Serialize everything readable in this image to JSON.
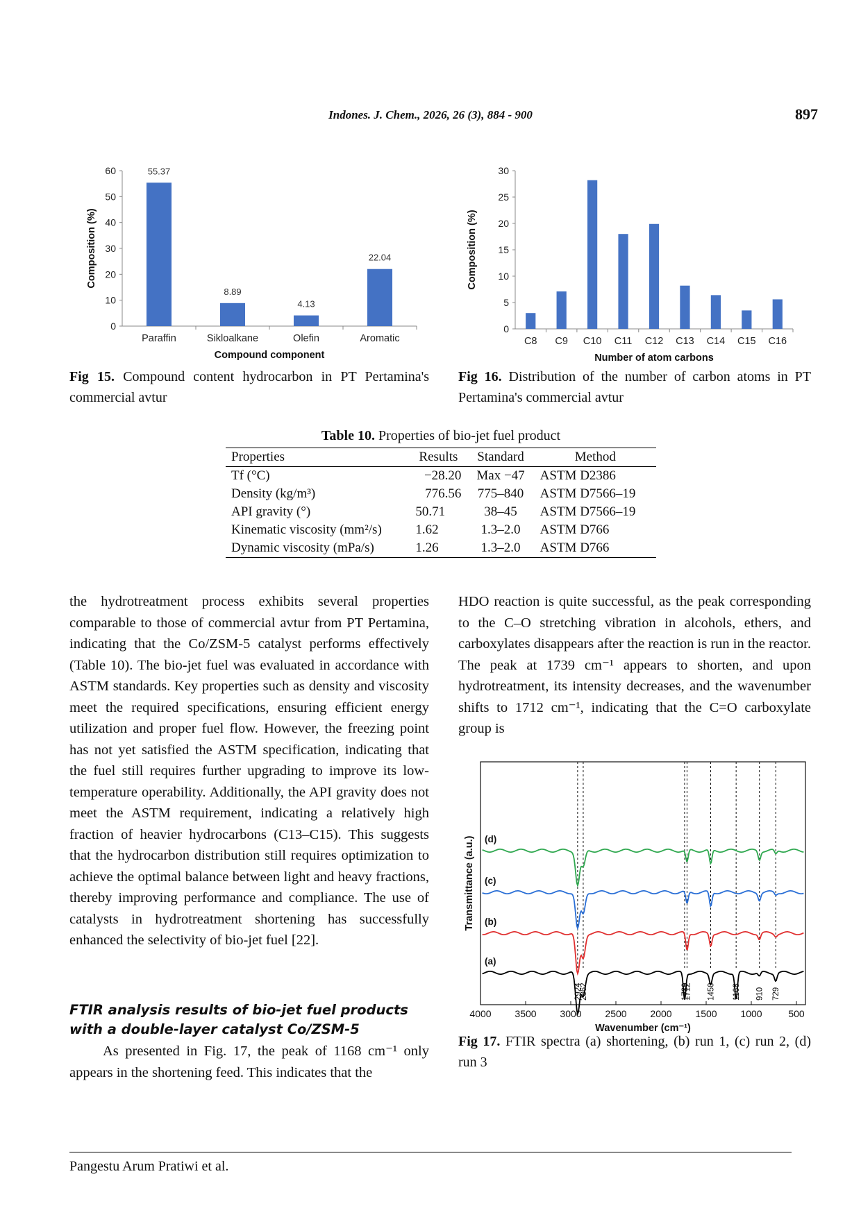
{
  "header": {
    "journal": "Indones. J. Chem., 2026, 26 (3), 884 - 900",
    "page_number": "897"
  },
  "fig15": {
    "caption_label": "Fig 15.",
    "caption_text": "Compound content hydrocarbon in PT Pertamina's commercial avtur"
  },
  "fig16": {
    "caption_label": "Fig 16.",
    "caption_text": "Distribution of the number of carbon atoms in PT Pertamina's commercial avtur"
  },
  "fig17": {
    "caption_label": "Fig 17.",
    "caption_text": "FTIR spectra (a) shortening, (b) run 1, (c) run 2, (d) run 3"
  },
  "table10": {
    "title_label": "Table 10.",
    "title_text": "Properties of bio-jet fuel product",
    "headers": [
      "Properties",
      "Results",
      "Standard",
      "Method"
    ],
    "rows": [
      {
        "property": "Tf (°C)",
        "result": "−28.20",
        "standard": "Max −47",
        "method": "ASTM D2386"
      },
      {
        "property": "Density (kg/m³)",
        "result": "776.56",
        "standard": "775–840",
        "method": "ASTM D7566–19"
      },
      {
        "property": "API gravity (°)",
        "result": "50.71",
        "standard": "38–45",
        "method": "ASTM D7566–19"
      },
      {
        "property": "Kinematic viscosity (mm²/s)",
        "result": "1.62",
        "standard": "1.3–2.0",
        "method": "ASTM D766"
      },
      {
        "property": "Dynamic viscosity (mPa/s)",
        "result": "1.26",
        "standard": "1.3–2.0",
        "method": "ASTM D766"
      }
    ]
  },
  "left_column": {
    "paragraph1": "the hydrotreatment process exhibits several properties comparable to those of commercial avtur from PT Pertamina, indicating that the Co/ZSM-5 catalyst performs effectively (Table 10). The bio-jet fuel was evaluated in accordance with ASTM standards. Key properties such as density and viscosity meet the required specifications, ensuring efficient energy utilization and proper fuel flow. However, the freezing point has not yet satisfied the ASTM specification, indicating that the fuel still requires further upgrading to improve its low-temperature operability. Additionally, the API gravity does not meet the ASTM requirement, indicating a relatively high fraction of heavier hydrocarbons (C13–C15). This suggests that the hydrocarbon distribution still requires optimization to achieve the optimal balance between light and heavy fractions, thereby improving performance and compliance. The use of catalysts in hydrotreatment shortening has successfully enhanced the selectivity of bio-jet fuel [22].",
    "section_heading": "FTIR analysis results of bio-jet fuel products with a double-layer catalyst Co/ZSM-5",
    "paragraph2": "As presented in Fig. 17, the peak of 1168 cm⁻¹ only appears in the shortening feed. This indicates that the"
  },
  "right_column": {
    "paragraph1": "HDO reaction is quite successful, as the peak corresponding to the C–O stretching vibration in alcohols, ethers, and carboxylates disappears after the reaction is run in the reactor. The peak at 1739 cm⁻¹ appears to shorten, and upon hydrotreatment, its intensity decreases, and the wavenumber shifts to 1712 cm⁻¹, indicating that the C=O carboxylate group is"
  },
  "footer": {
    "authors": "Pangestu Arum Pratiwi et al."
  },
  "chart_data": [
    {
      "type": "bar",
      "categories": [
        "Paraffin",
        "Sikloalkane",
        "Olefin",
        "Aromatic"
      ],
      "values": [
        55.37,
        8.89,
        4.13,
        22.04
      ],
      "data_labels": [
        "55.37",
        "8.89",
        "4.13",
        "22.04"
      ],
      "xlabel": "Compound component",
      "ylabel": "Composition (%)",
      "ylim": [
        0,
        60
      ],
      "yticks": [
        0,
        10,
        20,
        30,
        40,
        50,
        60
      ],
      "color": "#4472C4",
      "grid": false
    },
    {
      "type": "bar",
      "categories": [
        "C8",
        "C9",
        "C10",
        "C11",
        "C12",
        "C13",
        "C14",
        "C15",
        "C16"
      ],
      "values": [
        3.0,
        7.1,
        28.2,
        18.0,
        19.9,
        8.2,
        6.4,
        3.5,
        5.6
      ],
      "xlabel": "Number of atom carbons",
      "ylabel": "Composition (%)",
      "ylim": [
        0,
        30
      ],
      "yticks": [
        0,
        5,
        10,
        15,
        20,
        25,
        30
      ],
      "color": "#4472C4",
      "grid": false
    },
    {
      "type": "line",
      "xlabel": "Wavenumber (cm⁻¹)",
      "ylabel": "Transmittance (a.u.)",
      "xlim": [
        4000,
        400
      ],
      "xticks": [
        4000,
        3500,
        3000,
        2500,
        2000,
        1500,
        1000,
        500
      ],
      "reference_lines": [
        2924,
        2862,
        1739,
        1712,
        1450,
        1168,
        910,
        729
      ],
      "reference_labels": [
        "2924",
        "2862",
        "1739",
        "1712",
        "1450",
        "1168",
        "910",
        "729"
      ],
      "series": [
        {
          "name": "(a)",
          "color": "#000000",
          "baseline": 0.0,
          "peaks": [
            [
              2924,
              0.85
            ],
            [
              2862,
              0.45
            ],
            [
              1739,
              0.55
            ],
            [
              1450,
              0.22
            ],
            [
              1168,
              0.55
            ],
            [
              910,
              0.08
            ],
            [
              729,
              0.15
            ]
          ]
        },
        {
          "name": "(b)",
          "color": "#E03030",
          "baseline": 1.0,
          "peaks": [
            [
              2924,
              0.85
            ],
            [
              2862,
              0.5
            ],
            [
              1712,
              0.35
            ],
            [
              1450,
              0.25
            ],
            [
              910,
              0.12
            ],
            [
              729,
              0.05
            ]
          ]
        },
        {
          "name": "(c)",
          "color": "#2A6FD6",
          "baseline": 2.0,
          "peaks": [
            [
              2924,
              0.75
            ],
            [
              2862,
              0.45
            ],
            [
              1712,
              0.25
            ],
            [
              1450,
              0.3
            ],
            [
              910,
              0.15
            ],
            [
              729,
              0.05
            ]
          ]
        },
        {
          "name": "(d)",
          "color": "#2FA84F",
          "baseline": 3.0,
          "peaks": [
            [
              2924,
              0.7
            ],
            [
              2862,
              0.35
            ],
            [
              1712,
              0.25
            ],
            [
              1450,
              0.3
            ],
            [
              910,
              0.18
            ],
            [
              729,
              0.08
            ]
          ]
        }
      ]
    }
  ]
}
